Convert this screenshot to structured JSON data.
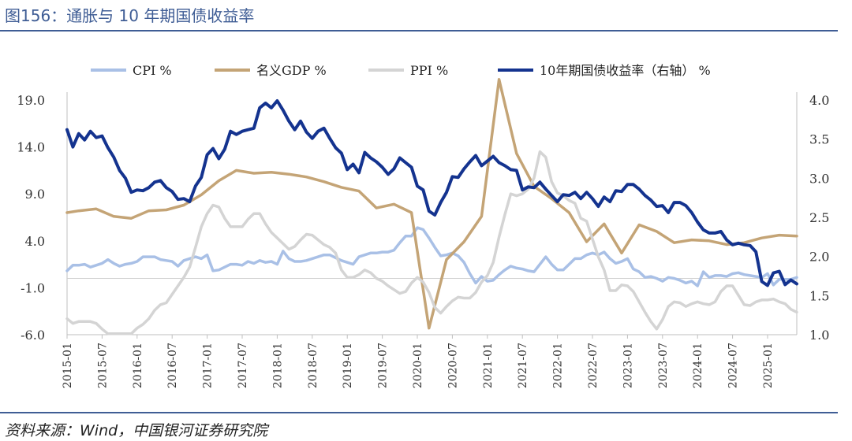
{
  "title": "图156：通胀与 10 年期国债收益率",
  "source": "资料来源：Wind，中国银河证券研究院",
  "chart_data": {
    "type": "line",
    "x": [
      "2015-01",
      "2015-02",
      "2015-03",
      "2015-04",
      "2015-05",
      "2015-06",
      "2015-07",
      "2015-08",
      "2015-09",
      "2015-10",
      "2015-11",
      "2015-12",
      "2016-01",
      "2016-02",
      "2016-03",
      "2016-04",
      "2016-05",
      "2016-06",
      "2016-07",
      "2016-08",
      "2016-09",
      "2016-10",
      "2016-11",
      "2016-12",
      "2017-01",
      "2017-02",
      "2017-03",
      "2017-04",
      "2017-05",
      "2017-06",
      "2017-07",
      "2017-08",
      "2017-09",
      "2017-10",
      "2017-11",
      "2017-12",
      "2018-01",
      "2018-02",
      "2018-03",
      "2018-04",
      "2018-05",
      "2018-06",
      "2018-07",
      "2018-08",
      "2018-09",
      "2018-10",
      "2018-11",
      "2018-12",
      "2019-01",
      "2019-02",
      "2019-03",
      "2019-04",
      "2019-05",
      "2019-06",
      "2019-07",
      "2019-08",
      "2019-09",
      "2019-10",
      "2019-11",
      "2019-12",
      "2020-01",
      "2020-02",
      "2020-03",
      "2020-04",
      "2020-05",
      "2020-06",
      "2020-07",
      "2020-08",
      "2020-09",
      "2020-10",
      "2020-11",
      "2020-12",
      "2021-01",
      "2021-02",
      "2021-03",
      "2021-04",
      "2021-05",
      "2021-06",
      "2021-07",
      "2021-08",
      "2021-09",
      "2021-10",
      "2021-11",
      "2021-12",
      "2022-01",
      "2022-02",
      "2022-03",
      "2022-04",
      "2022-05",
      "2022-06",
      "2022-07",
      "2022-08",
      "2022-09",
      "2022-10",
      "2022-11",
      "2022-12",
      "2023-01",
      "2023-02",
      "2023-03",
      "2023-04",
      "2023-05",
      "2023-06",
      "2023-07",
      "2023-08",
      "2023-09",
      "2023-10",
      "2023-11",
      "2023-12",
      "2024-01",
      "2024-02",
      "2024-03",
      "2024-04",
      "2024-05",
      "2024-06",
      "2024-07",
      "2024-08",
      "2024-09",
      "2024-10",
      "2024-11",
      "2024-12",
      "2025-01",
      "2025-02",
      "2025-03",
      "2025-04",
      "2025-05",
      "2025-06"
    ],
    "x_ticks": [
      "2015-01",
      "2015-07",
      "2016-01",
      "2016-07",
      "2017-01",
      "2017-07",
      "2018-01",
      "2018-07",
      "2019-01",
      "2019-07",
      "2020-01",
      "2020-07",
      "2021-01",
      "2021-07",
      "2022-01",
      "2022-07",
      "2023-01",
      "2023-07",
      "2024-01",
      "2024-07",
      "2025-01"
    ],
    "y_left": {
      "min": -6.0,
      "max": 19.0,
      "ticks": [
        "19.0",
        "14.0",
        "9.0",
        "4.0",
        "-1.0",
        "-6.0"
      ]
    },
    "y_right": {
      "min": 1.0,
      "max": 4.0,
      "ticks": [
        "4.0",
        "3.5",
        "3.0",
        "2.5",
        "2.0",
        "1.5",
        "1.0"
      ]
    },
    "zero_line": 0,
    "series": [
      {
        "name": "CPI %",
        "color": "#a9c0e6",
        "axis": "left",
        "values": [
          0.8,
          1.4,
          1.4,
          1.5,
          1.2,
          1.4,
          1.6,
          2.0,
          1.6,
          1.3,
          1.5,
          1.6,
          1.8,
          2.3,
          2.3,
          2.3,
          2.0,
          1.9,
          1.8,
          1.3,
          1.9,
          2.1,
          2.3,
          2.1,
          2.5,
          0.8,
          0.9,
          1.2,
          1.5,
          1.5,
          1.4,
          1.8,
          1.6,
          1.9,
          1.7,
          1.8,
          1.5,
          2.9,
          2.1,
          1.8,
          1.8,
          1.9,
          2.1,
          2.3,
          2.5,
          2.5,
          2.2,
          1.9,
          1.7,
          1.5,
          2.3,
          2.5,
          2.7,
          2.7,
          2.8,
          2.8,
          3.0,
          3.8,
          4.5,
          4.5,
          5.4,
          5.2,
          4.3,
          3.3,
          2.4,
          2.5,
          2.7,
          2.4,
          1.7,
          0.5,
          -0.5,
          0.2,
          -0.3,
          -0.2,
          0.4,
          0.9,
          1.3,
          1.1,
          1.0,
          0.8,
          0.7,
          1.5,
          2.3,
          1.5,
          0.9,
          0.9,
          1.5,
          2.1,
          2.1,
          2.5,
          2.7,
          2.5,
          2.8,
          2.1,
          1.6,
          1.8,
          2.1,
          1.0,
          0.7,
          0.1,
          0.2,
          0.0,
          -0.3,
          0.1,
          0.0,
          -0.2,
          -0.5,
          -0.3,
          -0.8,
          0.7,
          0.1,
          0.3,
          0.3,
          0.2,
          0.5,
          0.6,
          0.4,
          0.3,
          0.2,
          0.1,
          0.5,
          -0.7,
          -0.1,
          -0.1,
          -0.1,
          0.1
        ]
      },
      {
        "name": "名义GDP %",
        "color": "#c4a476",
        "axis": "left",
        "values": [
          7.0,
          null,
          7.2,
          null,
          null,
          7.4,
          null,
          null,
          6.6,
          null,
          null,
          6.4,
          null,
          null,
          7.2,
          null,
          null,
          7.3,
          null,
          null,
          7.8,
          null,
          null,
          8.9,
          null,
          null,
          10.4,
          null,
          null,
          11.5,
          null,
          null,
          11.2,
          null,
          null,
          11.3,
          null,
          null,
          11.1,
          null,
          null,
          10.8,
          null,
          null,
          10.3,
          null,
          null,
          9.7,
          null,
          null,
          9.3,
          null,
          null,
          7.5,
          null,
          null,
          7.9,
          null,
          null,
          7.0,
          null,
          null,
          -5.3,
          null,
          null,
          2.0,
          null,
          null,
          3.9,
          null,
          null,
          6.6,
          null,
          null,
          21.2,
          null,
          null,
          13.3,
          null,
          null,
          9.8,
          null,
          null,
          8.5,
          null,
          null,
          7.0,
          null,
          null,
          3.9,
          null,
          null,
          5.8,
          null,
          null,
          2.7,
          null,
          null,
          5.7,
          null,
          null,
          5.0,
          null,
          null,
          3.8,
          null,
          null,
          4.1,
          null,
          null,
          4.0,
          null,
          null,
          3.6,
          null,
          null,
          3.8,
          null,
          null,
          4.3,
          null,
          null,
          4.6,
          null,
          null,
          4.5
        ]
      },
      {
        "name": "PPI %",
        "color": "#d4d4d4",
        "axis": "left",
        "values": [
          -4.3,
          -4.8,
          -4.6,
          -4.6,
          -4.6,
          -4.8,
          -5.4,
          -5.9,
          -5.9,
          -5.9,
          -5.9,
          -5.9,
          -5.3,
          -4.9,
          -4.3,
          -3.4,
          -2.8,
          -2.6,
          -1.7,
          -0.8,
          0.1,
          1.2,
          3.3,
          5.5,
          6.9,
          7.8,
          7.6,
          6.4,
          5.5,
          5.5,
          5.5,
          6.3,
          6.9,
          6.9,
          5.8,
          4.9,
          4.3,
          3.7,
          3.1,
          3.4,
          4.1,
          4.7,
          4.6,
          4.1,
          3.6,
          3.3,
          2.7,
          0.9,
          0.1,
          0.1,
          0.4,
          0.9,
          0.6,
          0.0,
          -0.3,
          -0.8,
          -1.2,
          -1.6,
          -1.4,
          -0.5,
          0.1,
          -0.4,
          -1.5,
          -3.1,
          -3.7,
          -3.0,
          -2.4,
          -2.0,
          -2.1,
          -2.1,
          -1.5,
          -0.4,
          0.3,
          1.7,
          4.4,
          6.8,
          9.0,
          8.8,
          9.0,
          9.5,
          10.7,
          13.5,
          12.9,
          10.3,
          9.1,
          8.8,
          8.3,
          8.0,
          6.4,
          6.1,
          4.2,
          2.3,
          0.9,
          -1.3,
          -1.3,
          -0.7,
          -0.8,
          -1.4,
          -2.5,
          -3.6,
          -4.6,
          -5.4,
          -4.4,
          -3.0,
          -2.5,
          -2.6,
          -3.0,
          -2.7,
          -2.5,
          -2.7,
          -2.8,
          -2.5,
          -1.4,
          -0.8,
          -0.8,
          -1.8,
          -2.8,
          -2.9,
          -2.5,
          -2.3,
          -2.3,
          -2.2,
          -2.5,
          -2.7,
          -3.3,
          -3.6
        ]
      },
      {
        "name": "10年期国债收益率（右轴） %",
        "color": "#14338f",
        "axis": "right",
        "values": [
          3.62,
          3.4,
          3.57,
          3.49,
          3.6,
          3.52,
          3.54,
          3.39,
          3.27,
          3.1,
          3.0,
          2.82,
          2.85,
          2.84,
          2.88,
          2.95,
          2.97,
          2.88,
          2.83,
          2.73,
          2.74,
          2.7,
          2.9,
          3.01,
          3.3,
          3.38,
          3.25,
          3.37,
          3.6,
          3.56,
          3.6,
          3.62,
          3.64,
          3.9,
          3.96,
          3.9,
          3.99,
          3.87,
          3.73,
          3.62,
          3.73,
          3.59,
          3.51,
          3.6,
          3.64,
          3.51,
          3.39,
          3.32,
          3.11,
          3.18,
          3.07,
          3.33,
          3.26,
          3.21,
          3.14,
          3.05,
          3.12,
          3.26,
          3.2,
          3.14,
          2.9,
          2.85,
          2.58,
          2.53,
          2.69,
          2.82,
          3.02,
          3.01,
          3.12,
          3.21,
          3.29,
          3.16,
          3.22,
          3.28,
          3.2,
          3.16,
          3.11,
          3.1,
          2.85,
          2.89,
          2.88,
          2.95,
          2.86,
          2.78,
          2.7,
          2.79,
          2.78,
          2.82,
          2.74,
          2.82,
          2.74,
          2.64,
          2.76,
          2.7,
          2.84,
          2.83,
          2.92,
          2.92,
          2.86,
          2.78,
          2.72,
          2.64,
          2.65,
          2.56,
          2.69,
          2.69,
          2.65,
          2.56,
          2.44,
          2.34,
          2.3,
          2.3,
          2.32,
          2.21,
          2.15,
          2.17,
          2.15,
          2.14,
          2.06,
          1.68,
          1.63,
          1.79,
          1.81,
          1.64,
          1.7,
          1.65
        ]
      }
    ]
  }
}
